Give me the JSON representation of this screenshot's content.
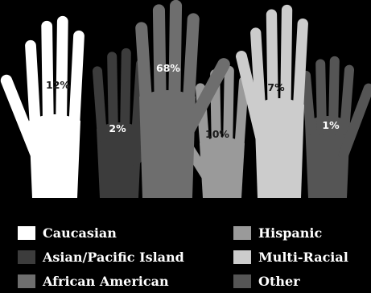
{
  "chart_data": {
    "type": "pictograph",
    "categories": [
      "Caucasian",
      "Asian/Pacific Island",
      "African American",
      "Hispanic",
      "Multi-Racial",
      "Other"
    ],
    "values": [
      12,
      2,
      68,
      10,
      7,
      1
    ],
    "value_labels": [
      "12%",
      "2%",
      "68%",
      "10%",
      "7%",
      "1%"
    ],
    "colors": [
      "#ffffff",
      "#3c3c3c",
      "#6e6e6e",
      "#9a9a9a",
      "#cccccc",
      "#555555"
    ],
    "label_colors": [
      "#1a1a1a",
      "#ffffff",
      "#ffffff",
      "#1a1a1a",
      "#1a1a1a",
      "#ffffff"
    ],
    "icon": "raised-hand-icon",
    "legend_position": "bottom"
  }
}
